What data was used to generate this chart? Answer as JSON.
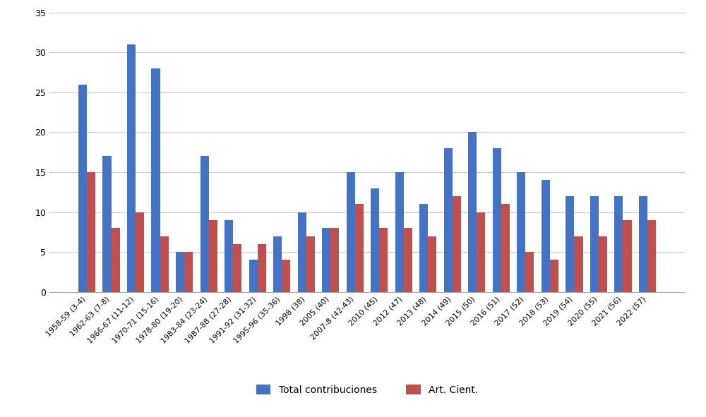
{
  "categories": [
    "1958-59 (3-4)",
    "1962-63 (7-8)",
    "1966-67 (11-12)",
    "1970-71 (15-16)",
    "1978-80 (19-20)",
    "1983-84 (23-24)",
    "1987-88 (27-28)",
    "1991-92 (31-32)",
    "1995-96 (35-36)",
    "1998 (38)",
    "2005 (40)",
    "2007-8 (42-43)",
    "2010 (45)",
    "2012 (47)",
    "2013 (48)",
    "2014 (49)",
    "2015 (50)",
    "2016 (51)",
    "2017 (52)",
    "2018 (53)",
    "2019 (54)",
    "2020 (55)",
    "2021 (56)",
    "2022 (57)"
  ],
  "total_contribuciones": [
    26,
    17,
    31,
    28,
    5,
    17,
    9,
    4,
    7,
    10,
    8,
    15,
    13,
    15,
    11,
    18,
    20,
    18,
    15,
    14,
    12,
    12,
    12,
    12
  ],
  "art_cient": [
    15,
    8,
    10,
    7,
    5,
    9,
    6,
    6,
    4,
    7,
    8,
    11,
    8,
    8,
    7,
    12,
    10,
    11,
    5,
    4,
    7,
    7,
    9,
    9
  ],
  "blue_color": "#4472C4",
  "red_color": "#C0504D",
  "legend_total": "Total contribuciones",
  "legend_art": "Art. Cient.",
  "ylim": [
    0,
    35
  ],
  "yticks": [
    0,
    5,
    10,
    15,
    20,
    25,
    30,
    35
  ],
  "bar_width": 0.35,
  "figwidth": 10.0,
  "figheight": 5.91,
  "dpi": 100,
  "tick_fontsize": 7.8,
  "legend_fontsize": 10,
  "grid_color": "#C8C8C8"
}
